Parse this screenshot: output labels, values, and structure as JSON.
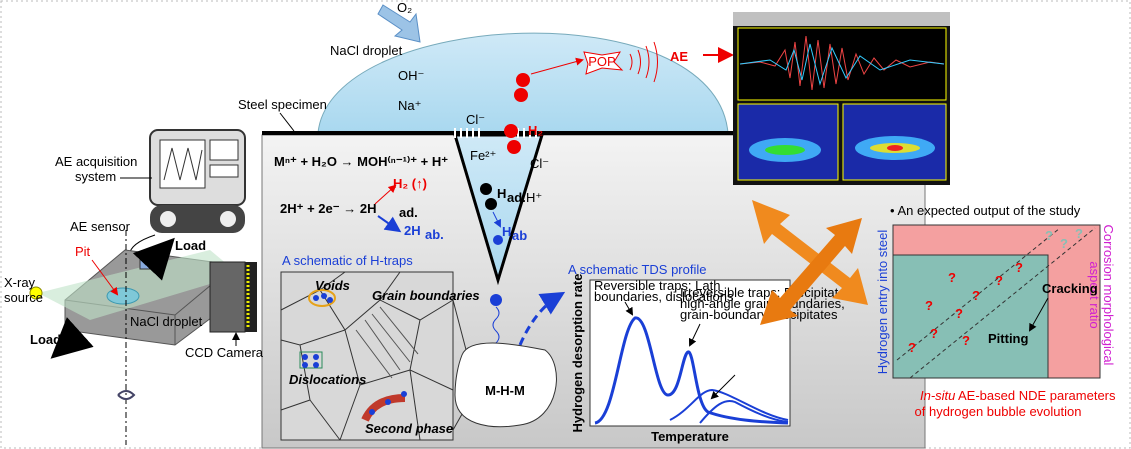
{
  "droplet": {
    "label": "NaCl droplet",
    "o2": "O₂",
    "ions": [
      "OH⁻",
      "Na⁺",
      "Cl⁻",
      "Fe²⁺",
      "Cl⁻",
      "H⁺"
    ],
    "h2": "H₂",
    "pop": "POP",
    "ae": "AE"
  },
  "specimen": {
    "label": "Steel specimen"
  },
  "setup": {
    "acquisition": [
      "AE acquisition",
      "system"
    ],
    "sensor": "AE sensor",
    "load_top": "Load",
    "pit": "Pit",
    "xray": [
      "X-ray",
      "source"
    ],
    "droplet": "NaCl droplet",
    "load_bottom": "Load",
    "camera": "CCD Camera"
  },
  "reactions": {
    "eq1": "Mⁿ⁺ + H₂O → MOH⁽ⁿ⁻¹⁾⁺ + H⁺",
    "eq2": {
      "base": "2H⁺ + 2e⁻ → 2H",
      "sub": "ad."
    },
    "h2_up": "H₂ (↑)",
    "h_abs": {
      "base": "2H",
      "sub": "ab."
    },
    "h_ad_pit": {
      "base": "H",
      "sub": "ad."
    },
    "h_ab_pit": {
      "base": "H",
      "sub": "ab"
    }
  },
  "traps": {
    "title": "A schematic of H-traps",
    "labels": [
      "Voids",
      "Grain boundaries",
      "Dislocations",
      "Second phase"
    ],
    "complex": "M-H-M"
  },
  "tds": {
    "title": "A schematic TDS profile",
    "reversible": [
      "Reversible traps: Lath",
      "boundaries, dislocations"
    ],
    "irreversible": [
      "Irreversible traps: Precipitates,",
      "high-angle grain boundaries,",
      "grain-boundary precipitates"
    ],
    "ylabel": "Hydrogen desorption rate",
    "xlabel": "Temperature"
  },
  "output": {
    "title": "• An expected output of the study",
    "ylabel": "Hydrogen entry into steel",
    "right_label": [
      "Corrosion morphological",
      "aspect ratio"
    ],
    "cracking": "Cracking",
    "pitting": "Pitting",
    "caption": [
      "In-situ",
      " AE-based NDE parameters",
      "of hydrogen bubble evolution"
    ],
    "marks": [
      "?",
      "?",
      "?",
      "?",
      "?",
      "?",
      "?",
      "?",
      "?",
      "?",
      "?",
      "?"
    ]
  }
}
